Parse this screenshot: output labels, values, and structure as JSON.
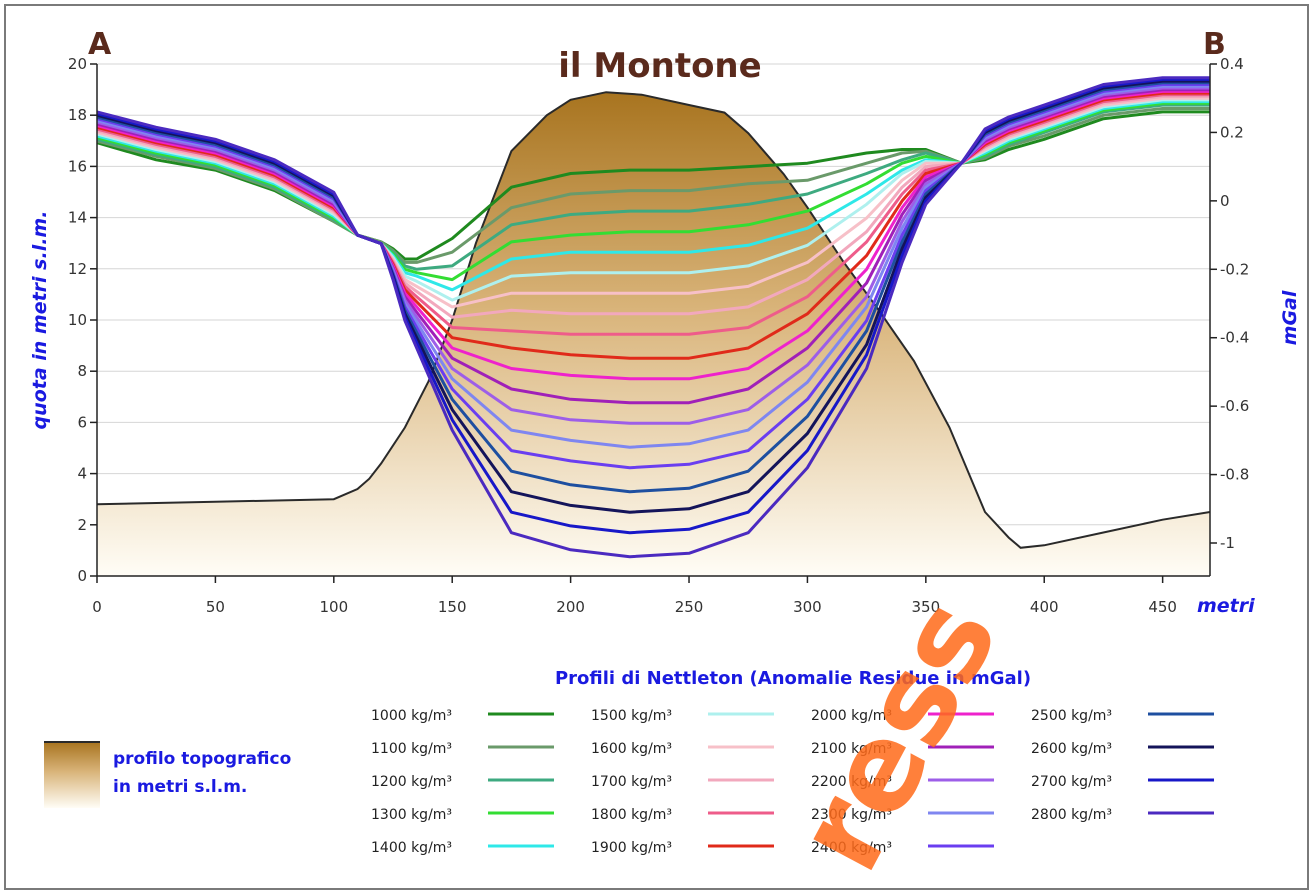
{
  "chart_data": {
    "type": "line",
    "title": "il Montone",
    "end_labels": {
      "left": "A",
      "right": "B"
    },
    "xlabel": "metri",
    "ylabel_left": "quota in metri s.l.m.",
    "ylabel_right": "mGal",
    "xlim": [
      0,
      470
    ],
    "ylim_left": [
      0,
      20
    ],
    "ylim_right": [
      -1.1,
      0.4
    ],
    "x_ticks": [
      "0",
      "50",
      "100",
      "150",
      "200",
      "250",
      "300",
      "350",
      "400",
      "450"
    ],
    "y_left_ticks": [
      "0",
      "2",
      "4",
      "6",
      "8",
      "10",
      "12",
      "14",
      "16",
      "18",
      "20"
    ],
    "y_right_ticks": [
      "-1",
      "-0.8",
      "-0.6",
      "-0.4",
      "-0.2",
      "0",
      "0.2",
      "0.4"
    ],
    "grid": true,
    "x": [
      0,
      25,
      50,
      75,
      100,
      110,
      120,
      125,
      130,
      135,
      150,
      175,
      200,
      225,
      250,
      275,
      300,
      325,
      340,
      350,
      365,
      375,
      385,
      400,
      425,
      450,
      470
    ],
    "topography": {
      "x": [
        0,
        50,
        100,
        110,
        115,
        120,
        130,
        140,
        150,
        160,
        175,
        190,
        200,
        215,
        230,
        250,
        265,
        275,
        290,
        300,
        315,
        330,
        345,
        360,
        375,
        385,
        390,
        400,
        425,
        450,
        470
      ],
      "values": [
        2.8,
        2.9,
        3.0,
        3.4,
        3.8,
        4.4,
        5.8,
        7.6,
        10.0,
        13.0,
        16.6,
        18.0,
        18.6,
        18.9,
        18.8,
        18.4,
        18.1,
        17.3,
        15.7,
        14.4,
        12.3,
        10.4,
        8.4,
        5.8,
        2.5,
        1.5,
        1.1,
        1.2,
        1.7,
        2.2,
        2.5
      ]
    },
    "series": [
      {
        "name": "1000 kg/m³",
        "color": "#1f8a1f",
        "values": [
          0.17,
          0.12,
          0.09,
          0.03,
          -0.06,
          -0.1,
          -0.12,
          -0.14,
          -0.17,
          -0.17,
          -0.11,
          0.04,
          0.08,
          0.09,
          0.09,
          0.1,
          0.11,
          0.14,
          0.15,
          0.15,
          0.11,
          0.12,
          0.15,
          0.18,
          0.24,
          0.26,
          0.26
        ]
      },
      {
        "name": "1100 kg/m³",
        "color": "#6a9a6a",
        "values": [
          0.175,
          0.13,
          0.095,
          0.035,
          -0.06,
          -0.1,
          -0.12,
          -0.145,
          -0.18,
          -0.18,
          -0.15,
          -0.02,
          0.02,
          0.03,
          0.03,
          0.05,
          0.06,
          0.11,
          0.14,
          0.145,
          0.11,
          0.125,
          0.16,
          0.19,
          0.25,
          0.27,
          0.27
        ]
      },
      {
        "name": "1200 kg/m³",
        "color": "#3eaa80",
        "values": [
          0.18,
          0.135,
          0.1,
          0.04,
          -0.055,
          -0.1,
          -0.125,
          -0.15,
          -0.19,
          -0.2,
          -0.19,
          -0.07,
          -0.04,
          -0.03,
          -0.03,
          -0.01,
          0.02,
          0.08,
          0.12,
          0.14,
          0.11,
          0.13,
          0.165,
          0.2,
          0.26,
          0.28,
          0.28
        ]
      },
      {
        "name": "1300 kg/m³",
        "color": "#33dd33",
        "values": [
          0.185,
          0.14,
          0.105,
          0.045,
          -0.05,
          -0.1,
          -0.125,
          -0.155,
          -0.2,
          -0.21,
          -0.23,
          -0.12,
          -0.1,
          -0.09,
          -0.09,
          -0.07,
          -0.03,
          0.05,
          0.11,
          0.13,
          0.11,
          0.135,
          0.17,
          0.205,
          0.265,
          0.285,
          0.285
        ]
      },
      {
        "name": "1400 kg/m³",
        "color": "#2ee8e8",
        "values": [
          0.19,
          0.145,
          0.11,
          0.05,
          -0.045,
          -0.1,
          -0.125,
          -0.16,
          -0.21,
          -0.22,
          -0.26,
          -0.17,
          -0.15,
          -0.15,
          -0.15,
          -0.13,
          -0.08,
          0.02,
          0.09,
          0.12,
          0.11,
          0.14,
          0.175,
          0.21,
          0.27,
          0.29,
          0.29
        ]
      },
      {
        "name": "1500 kg/m³",
        "color": "#aef0ee",
        "values": [
          0.195,
          0.15,
          0.115,
          0.055,
          -0.04,
          -0.1,
          -0.125,
          -0.165,
          -0.22,
          -0.235,
          -0.29,
          -0.22,
          -0.21,
          -0.21,
          -0.21,
          -0.19,
          -0.13,
          -0.01,
          0.08,
          0.115,
          0.11,
          0.145,
          0.18,
          0.215,
          0.275,
          0.295,
          0.295
        ]
      },
      {
        "name": "1600 kg/m³",
        "color": "#f7c0c8",
        "values": [
          0.2,
          0.155,
          0.12,
          0.06,
          -0.035,
          -0.1,
          -0.125,
          -0.17,
          -0.23,
          -0.25,
          -0.31,
          -0.27,
          -0.27,
          -0.27,
          -0.27,
          -0.25,
          -0.18,
          -0.05,
          0.06,
          0.11,
          0.11,
          0.15,
          0.185,
          0.22,
          0.28,
          0.3,
          0.3
        ]
      },
      {
        "name": "1700 kg/m³",
        "color": "#f2a8bd",
        "values": [
          0.205,
          0.16,
          0.125,
          0.065,
          -0.03,
          -0.1,
          -0.125,
          -0.175,
          -0.24,
          -0.265,
          -0.34,
          -0.32,
          -0.33,
          -0.33,
          -0.33,
          -0.31,
          -0.23,
          -0.09,
          0.04,
          0.1,
          0.11,
          0.155,
          0.19,
          0.225,
          0.285,
          0.305,
          0.305
        ]
      },
      {
        "name": "1800 kg/m³",
        "color": "#ee5c8a",
        "values": [
          0.21,
          0.165,
          0.13,
          0.07,
          -0.025,
          -0.1,
          -0.125,
          -0.18,
          -0.25,
          -0.28,
          -0.37,
          -0.38,
          -0.39,
          -0.39,
          -0.39,
          -0.37,
          -0.28,
          -0.12,
          0.02,
          0.09,
          0.11,
          0.16,
          0.195,
          0.23,
          0.29,
          0.31,
          0.31
        ]
      },
      {
        "name": "1900 kg/m³",
        "color": "#e02a1a",
        "values": [
          0.215,
          0.17,
          0.135,
          0.075,
          -0.02,
          -0.1,
          -0.125,
          -0.185,
          -0.26,
          -0.295,
          -0.4,
          -0.43,
          -0.45,
          -0.46,
          -0.46,
          -0.43,
          -0.33,
          -0.16,
          0.0,
          0.08,
          0.11,
          0.165,
          0.2,
          0.235,
          0.295,
          0.315,
          0.315
        ]
      },
      {
        "name": "2000 kg/m³",
        "color": "#ee22cc",
        "values": [
          0.22,
          0.175,
          0.14,
          0.08,
          -0.015,
          -0.1,
          -0.125,
          -0.19,
          -0.27,
          -0.31,
          -0.43,
          -0.49,
          -0.51,
          -0.52,
          -0.52,
          -0.49,
          -0.38,
          -0.2,
          -0.02,
          0.07,
          0.11,
          0.17,
          0.205,
          0.24,
          0.3,
          0.32,
          0.32
        ]
      },
      {
        "name": "2100 kg/m³",
        "color": "#a020b8",
        "values": [
          0.225,
          0.18,
          0.145,
          0.085,
          -0.01,
          -0.1,
          -0.125,
          -0.195,
          -0.28,
          -0.325,
          -0.46,
          -0.55,
          -0.58,
          -0.59,
          -0.59,
          -0.55,
          -0.43,
          -0.24,
          -0.04,
          0.06,
          0.11,
          0.175,
          0.21,
          0.245,
          0.305,
          0.325,
          0.325
        ]
      },
      {
        "name": "2200 kg/m³",
        "color": "#9d5ee8",
        "values": [
          0.23,
          0.185,
          0.15,
          0.09,
          -0.005,
          -0.1,
          -0.125,
          -0.2,
          -0.29,
          -0.34,
          -0.49,
          -0.61,
          -0.64,
          -0.65,
          -0.65,
          -0.61,
          -0.48,
          -0.28,
          -0.06,
          0.05,
          0.11,
          0.18,
          0.215,
          0.25,
          0.31,
          0.33,
          0.33
        ]
      },
      {
        "name": "2300 kg/m³",
        "color": "#7f86f0",
        "values": [
          0.235,
          0.19,
          0.155,
          0.095,
          0.0,
          -0.1,
          -0.125,
          -0.205,
          -0.3,
          -0.355,
          -0.52,
          -0.67,
          -0.7,
          -0.72,
          -0.71,
          -0.67,
          -0.53,
          -0.31,
          -0.08,
          0.04,
          0.11,
          0.185,
          0.22,
          0.255,
          0.315,
          0.335,
          0.335
        ]
      },
      {
        "name": "2400 kg/m³",
        "color": "#6a3ef0",
        "values": [
          0.24,
          0.195,
          0.16,
          0.1,
          0.005,
          -0.1,
          -0.125,
          -0.21,
          -0.31,
          -0.37,
          -0.55,
          -0.73,
          -0.76,
          -0.78,
          -0.77,
          -0.73,
          -0.58,
          -0.35,
          -0.1,
          0.03,
          0.11,
          0.19,
          0.225,
          0.26,
          0.32,
          0.34,
          0.34
        ]
      },
      {
        "name": "2500 kg/m³",
        "color": "#1e4fa0",
        "values": [
          0.245,
          0.2,
          0.165,
          0.105,
          0.01,
          -0.1,
          -0.125,
          -0.215,
          -0.32,
          -0.385,
          -0.58,
          -0.79,
          -0.83,
          -0.85,
          -0.84,
          -0.79,
          -0.63,
          -0.38,
          -0.12,
          0.02,
          0.11,
          0.195,
          0.23,
          0.265,
          0.325,
          0.345,
          0.345
        ]
      },
      {
        "name": "2600 kg/m³",
        "color": "#14145a",
        "values": [
          0.25,
          0.205,
          0.17,
          0.11,
          0.015,
          -0.1,
          -0.125,
          -0.22,
          -0.33,
          -0.4,
          -0.61,
          -0.85,
          -0.89,
          -0.91,
          -0.9,
          -0.85,
          -0.68,
          -0.42,
          -0.14,
          0.01,
          0.11,
          0.2,
          0.235,
          0.27,
          0.33,
          0.35,
          0.35
        ]
      },
      {
        "name": "2700 kg/m³",
        "color": "#1818c8",
        "values": [
          0.255,
          0.21,
          0.175,
          0.115,
          0.02,
          -0.1,
          -0.125,
          -0.225,
          -0.34,
          -0.415,
          -0.64,
          -0.91,
          -0.95,
          -0.97,
          -0.96,
          -0.91,
          -0.73,
          -0.45,
          -0.16,
          0.0,
          0.11,
          0.205,
          0.24,
          0.275,
          0.335,
          0.355,
          0.355
        ]
      },
      {
        "name": "2800 kg/m³",
        "color": "#4b2ac0",
        "values": [
          0.26,
          0.215,
          0.18,
          0.12,
          0.025,
          -0.1,
          -0.125,
          -0.23,
          -0.35,
          -0.43,
          -0.67,
          -0.97,
          -1.02,
          -1.04,
          -1.03,
          -0.97,
          -0.78,
          -0.49,
          -0.18,
          -0.01,
          0.11,
          0.21,
          0.245,
          0.28,
          0.34,
          0.36,
          0.36
        ]
      }
    ]
  },
  "legend": {
    "title": "Profili di Nettleton  (Anomalie Residue in mGal)",
    "topo_line1": "profilo topografico",
    "topo_line2": "in metri s.l.m."
  },
  "watermark": "ress"
}
